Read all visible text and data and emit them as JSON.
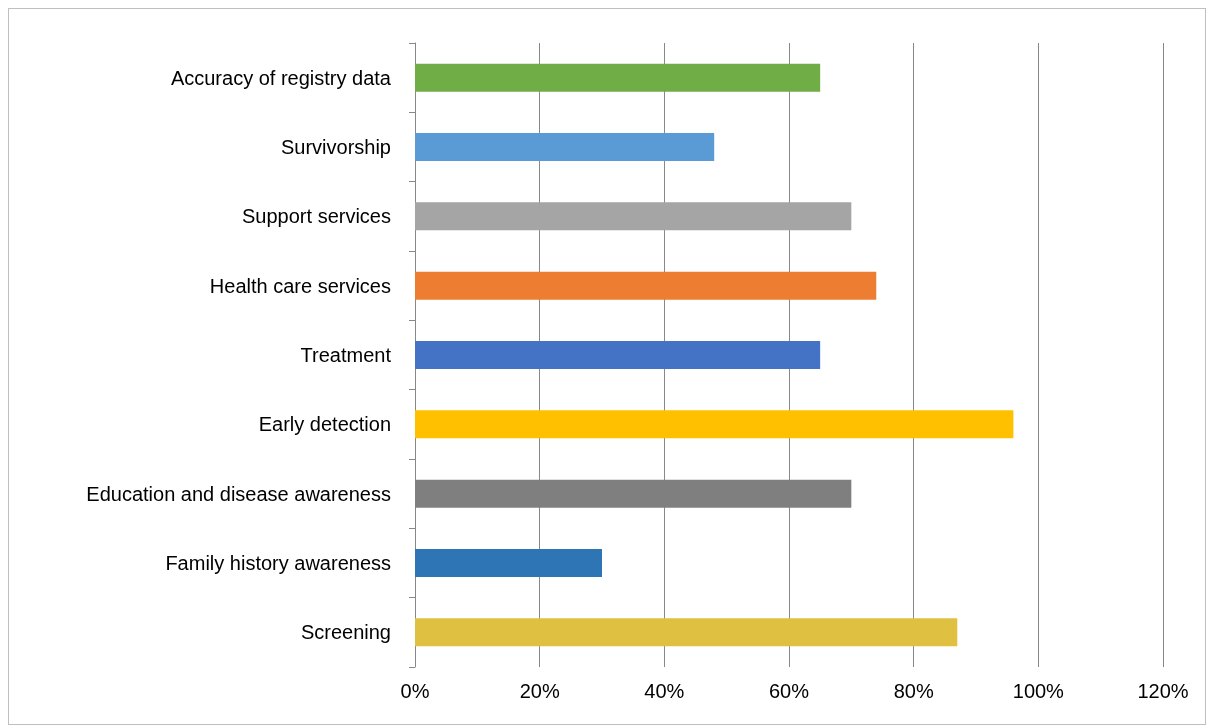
{
  "chart_data": {
    "type": "bar",
    "orientation": "horizontal",
    "categories": [
      "Accuracy of registry data",
      "Survivorship",
      "Support services",
      "Health care services",
      "Treatment",
      "Early detection",
      "Education and disease awareness",
      "Family history awareness",
      "Screening"
    ],
    "values": [
      65,
      48,
      70,
      74,
      65,
      96,
      70,
      30,
      87
    ],
    "colors": [
      "#70ad47",
      "#5b9bd5",
      "#a5a5a5",
      "#ed7d31",
      "#4472c4",
      "#ffc000",
      "#7f7f7f",
      "#2e75b6",
      "#e0c040"
    ],
    "xlim": [
      0,
      120
    ],
    "xticks": [
      {
        "value": 0,
        "label": "0%"
      },
      {
        "value": 20,
        "label": "20%"
      },
      {
        "value": 40,
        "label": "40%"
      },
      {
        "value": 60,
        "label": "60%"
      },
      {
        "value": 80,
        "label": "80%"
      },
      {
        "value": 100,
        "label": "100%"
      },
      {
        "value": 120,
        "label": "120%"
      }
    ],
    "grid": "x"
  }
}
